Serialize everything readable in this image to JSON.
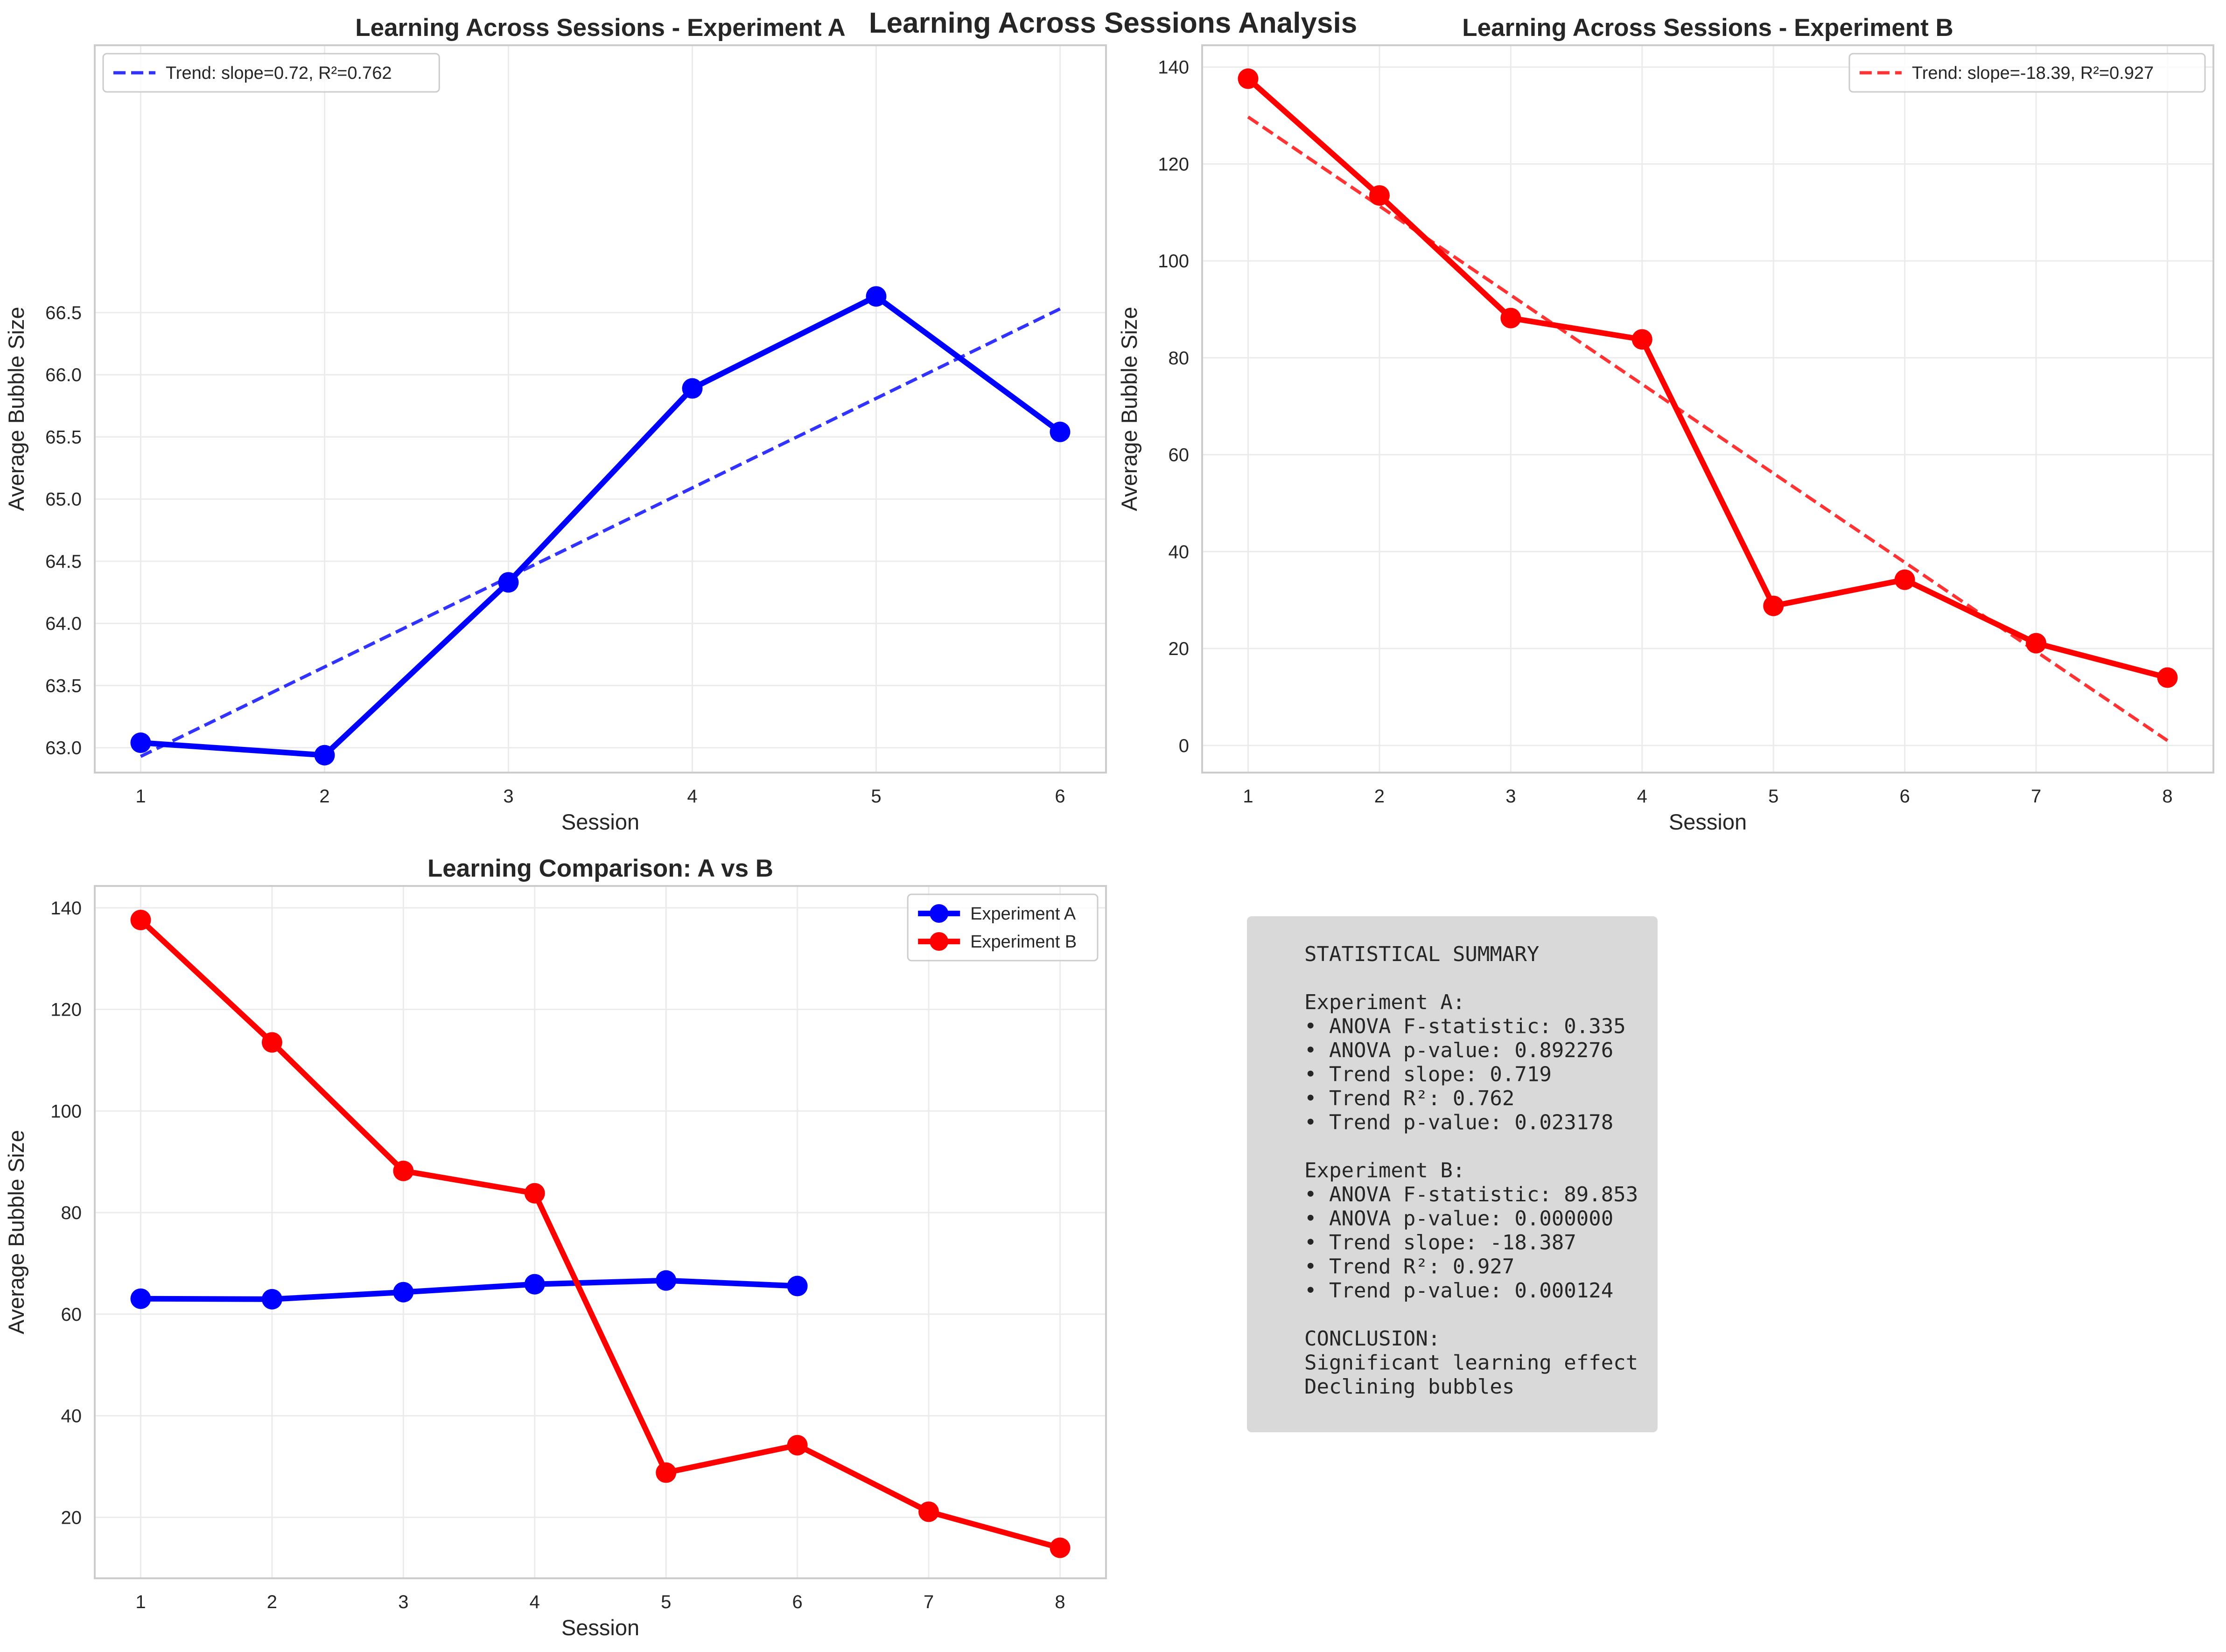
{
  "suptitle": "Learning Across Sessions Analysis",
  "colors": {
    "a": "#0000ff",
    "b": "#ff0000",
    "grid": "#ebebeb",
    "frame": "#cccccc",
    "summary_bg": "#d9d9d9"
  },
  "chart_data": [
    {
      "id": "exp_a",
      "type": "line",
      "title": "Learning Across Sessions - Experiment A",
      "xlabel": "Session",
      "ylabel": "Average Bubble Size",
      "xlim": [
        0.75,
        6.25
      ],
      "ylim": [
        62.8,
        68.65
      ],
      "xticks": [
        1,
        2,
        3,
        4,
        5,
        6
      ],
      "yticks": [
        63.0,
        63.5,
        64.0,
        64.5,
        65.0,
        65.5,
        66.0,
        66.5
      ],
      "ytick_labels": [
        "63.0",
        "63.5",
        "64.0",
        "64.5",
        "65.0",
        "65.5",
        "66.0",
        "66.5"
      ],
      "grid": true,
      "legend": "upper-left",
      "series": [
        {
          "x": [
            1,
            2,
            3,
            4,
            5,
            6
          ],
          "y": [
            63.04,
            62.94,
            64.33,
            65.89,
            66.63,
            65.54
          ],
          "color": "#0000ff",
          "style": "solid-markers"
        },
        {
          "name": "Trend: slope=0.72, R²=0.762",
          "x": [
            1,
            6
          ],
          "y": [
            62.93,
            66.53
          ],
          "color": "#0000ff",
          "style": "dashed"
        }
      ]
    },
    {
      "id": "exp_b",
      "type": "line",
      "title": "Learning Across Sessions - Experiment B",
      "xlabel": "Session",
      "ylabel": "Average Bubble Size",
      "xlim": [
        0.65,
        8.35
      ],
      "ylim": [
        -5.6,
        144.5
      ],
      "xticks": [
        1,
        2,
        3,
        4,
        5,
        6,
        7,
        8
      ],
      "yticks": [
        0,
        20,
        40,
        60,
        80,
        100,
        120,
        140
      ],
      "ytick_labels": [
        "0",
        "20",
        "40",
        "60",
        "80",
        "100",
        "120",
        "140"
      ],
      "grid": true,
      "legend": "upper-right",
      "series": [
        {
          "x": [
            1,
            2,
            3,
            4,
            5,
            6,
            7,
            8
          ],
          "y": [
            137.6,
            113.5,
            88.2,
            83.8,
            28.8,
            34.2,
            21.1,
            14.0
          ],
          "color": "#ff0000",
          "style": "solid-markers"
        },
        {
          "name": "Trend: slope=-18.39, R²=0.927",
          "x": [
            1,
            8
          ],
          "y": [
            129.7,
            1.0
          ],
          "color": "#ff0000",
          "style": "dashed"
        }
      ]
    },
    {
      "id": "comparison",
      "type": "line",
      "title": "Learning Comparison: A vs B",
      "xlabel": "Session",
      "ylabel": "Average Bubble Size",
      "xlim": [
        0.65,
        8.35
      ],
      "ylim": [
        8.0,
        144.3
      ],
      "xticks": [
        1,
        2,
        3,
        4,
        5,
        6,
        7,
        8
      ],
      "yticks": [
        20,
        40,
        60,
        80,
        100,
        120,
        140
      ],
      "ytick_labels": [
        "20",
        "40",
        "60",
        "80",
        "100",
        "120",
        "140"
      ],
      "grid": true,
      "legend": "upper-right",
      "series": [
        {
          "name": "Experiment A",
          "x": [
            1,
            2,
            3,
            4,
            5,
            6
          ],
          "y": [
            63.04,
            62.94,
            64.33,
            65.89,
            66.63,
            65.54
          ],
          "color": "#0000ff",
          "style": "solid-markers"
        },
        {
          "name": "Experiment B",
          "x": [
            1,
            2,
            3,
            4,
            5,
            6,
            7,
            8
          ],
          "y": [
            137.6,
            113.5,
            88.2,
            83.8,
            28.8,
            34.2,
            21.1,
            14.0
          ],
          "color": "#ff0000",
          "style": "solid-markers"
        }
      ]
    }
  ],
  "summary": {
    "lines": [
      "STATISTICAL SUMMARY",
      "",
      "Experiment A:",
      "• ANOVA F-statistic: 0.335",
      "• ANOVA p-value: 0.892276",
      "• Trend slope: 0.719",
      "• Trend R²: 0.762",
      "• Trend p-value: 0.023178",
      "",
      "Experiment B:",
      "• ANOVA F-statistic: 89.853",
      "• ANOVA p-value: 0.000000",
      "• Trend slope: -18.387",
      "• Trend R²: 0.927",
      "• Trend p-value: 0.000124",
      "",
      "CONCLUSION:",
      "Significant learning effect",
      "Declining bubbles"
    ]
  }
}
